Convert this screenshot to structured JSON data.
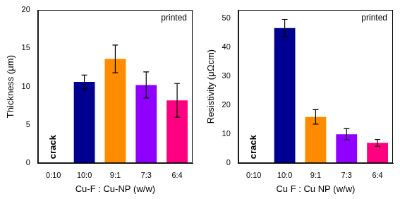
{
  "chart_data": [
    {
      "type": "bar",
      "x_label": "Cu-F : Cu-NP (w/w)",
      "y_label": "Thickness (μm)",
      "categories": [
        "0:10",
        "10:0",
        "9:1",
        "7:3",
        "6:4"
      ],
      "values": [
        null,
        10.6,
        13.6,
        10.2,
        8.2
      ],
      "errors": [
        null,
        0.9,
        1.8,
        1.7,
        2.2
      ],
      "colors": [
        "#000000",
        "#000090",
        "#ff8c00",
        "#8f00ff",
        "#ff0080"
      ],
      "ylim": [
        0,
        20
      ],
      "yticks": [
        0,
        5,
        10,
        15,
        20
      ],
      "grid": false,
      "annotations": [
        {
          "text": "printed"
        },
        {
          "text": "crack",
          "category": "0:10"
        }
      ]
    },
    {
      "type": "bar",
      "x_label": "Cu F : Cu NP (w/w)",
      "y_label": "Resistivity (μΩcm)",
      "categories": [
        "0:10",
        "10:0",
        "9:1",
        "7:3",
        "6:4"
      ],
      "values": [
        null,
        46.7,
        16.0,
        10.0,
        7.0
      ],
      "errors": [
        null,
        3.0,
        2.5,
        1.9,
        1.2
      ],
      "colors": [
        "#000000",
        "#000090",
        "#ff8c00",
        "#8f00ff",
        "#ff0080"
      ],
      "ylim": [
        0,
        53
      ],
      "yticks": [
        0,
        10,
        20,
        30,
        40,
        50
      ],
      "grid": false,
      "annotations": [
        {
          "text": "printed"
        },
        {
          "text": "crack",
          "category": "0:10"
        }
      ]
    }
  ]
}
